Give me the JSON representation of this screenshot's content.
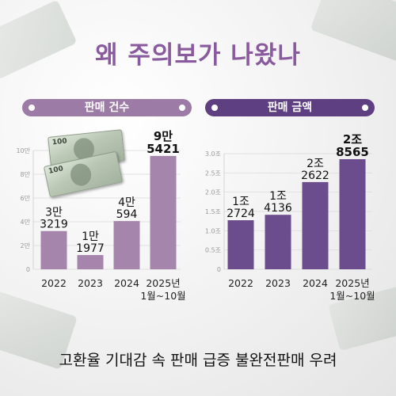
{
  "title": "왜 주의보가 나왔나",
  "caption": "고환율 기대감 속 판매 급증 불완전판매 우려",
  "colors": {
    "title": "#8a5a9e",
    "left_bar": "#a585ac",
    "left_pill": "#9c7ba6",
    "right_bar": "#6b4c8c",
    "right_pill": "#5e3f82",
    "axis_text": "#999999",
    "grid": "#d8d8d8"
  },
  "icons": {
    "decor": "dollar-bill-icon"
  },
  "chart_data": [
    {
      "type": "bar",
      "title": "판매 건수",
      "categories": [
        "2022",
        "2023",
        "2024",
        "2025년 1월~10월"
      ],
      "category_lines": [
        [
          "2022"
        ],
        [
          "2023"
        ],
        [
          "2024"
        ],
        [
          "2025년",
          "1월~10월"
        ]
      ],
      "values": [
        32193,
        11977,
        40594,
        95421
      ],
      "data_labels": [
        [
          "3만",
          "3219"
        ],
        [
          "1만",
          "1977"
        ],
        [
          "4만",
          "594"
        ],
        [
          "9만",
          "5421"
        ]
      ],
      "highlight_last": true,
      "ylim": [
        0,
        100000
      ],
      "y_ticks": [
        0,
        20000,
        40000,
        60000,
        80000,
        100000
      ],
      "y_tick_labels": [
        "0",
        "2만",
        "4만",
        "6만",
        "8만",
        "10만"
      ],
      "grid": true
    },
    {
      "type": "bar",
      "title": "판매 금액",
      "categories": [
        "2022",
        "2023",
        "2024",
        "2025년 1월~10월"
      ],
      "category_lines": [
        [
          "2022"
        ],
        [
          "2023"
        ],
        [
          "2024"
        ],
        [
          "2025년",
          "1월~10월"
        ]
      ],
      "values": [
        1.2724,
        1.4136,
        2.2622,
        2.8565
      ],
      "data_labels": [
        [
          "1조",
          "2724"
        ],
        [
          "1조",
          "4136"
        ],
        [
          "2조",
          "2622"
        ],
        [
          "2조",
          "8565"
        ]
      ],
      "highlight_last": true,
      "ylim": [
        0,
        3.0
      ],
      "y_ticks": [
        0,
        0.5,
        1.0,
        1.5,
        2.0,
        2.5,
        3.0
      ],
      "y_tick_labels": [
        "0",
        "0.5조",
        "1.0조",
        "1.5조",
        "2.0조",
        "2.5조",
        "3.0조"
      ],
      "grid": true
    }
  ]
}
